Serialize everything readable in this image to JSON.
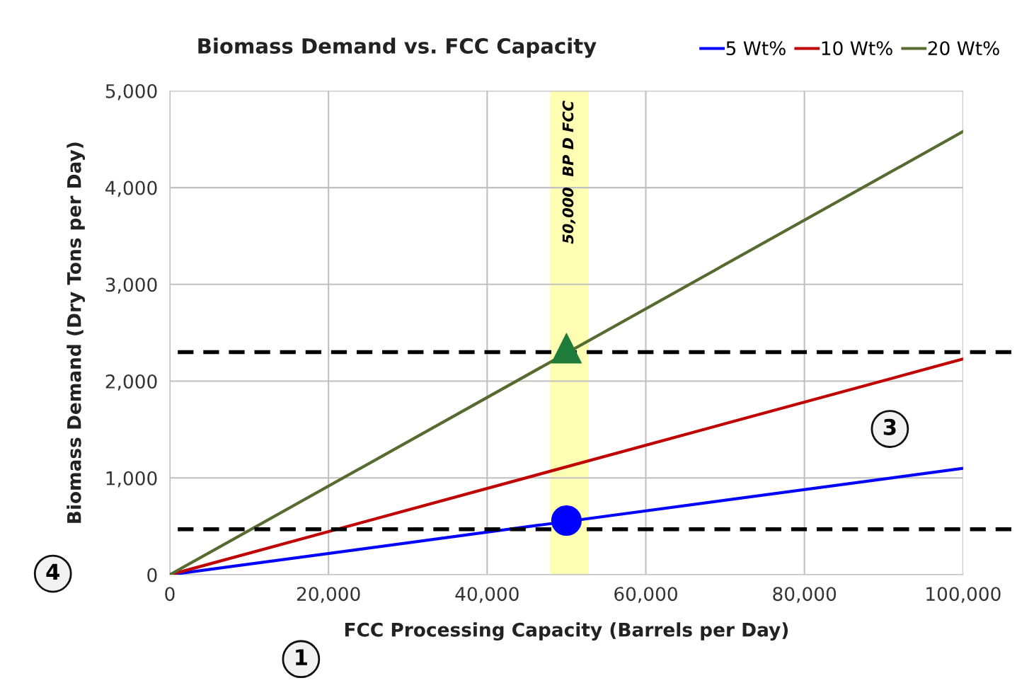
{
  "chart_data": {
    "type": "line",
    "title": "Biomass Demand vs. FCC Capacity",
    "xlabel": "FCC Processing Capacity (Barrels per Day)",
    "ylabel": "Biomass Demand (Dry Tons per Day)",
    "x": [
      0,
      100000
    ],
    "series": [
      {
        "name": "5 Wt%",
        "color": "#0000ff",
        "values": [
          0,
          1100
        ]
      },
      {
        "name": "10 Wt%",
        "color": "#c00000",
        "values": [
          0,
          2230
        ]
      },
      {
        "name": "20 Wt%",
        "color": "#556b2f",
        "values": [
          0,
          4580
        ]
      },
      {
        "type": "scatter",
        "color": "#0000ff",
        "marker": "circle",
        "x": [
          50000
        ],
        "values": [
          560
        ]
      },
      {
        "type": "scatter",
        "color": "#1e7b3a",
        "marker": "triangle",
        "x": [
          50000
        ],
        "values": [
          2340
        ]
      }
    ],
    "xlim": [
      0,
      100000
    ],
    "xticks": [
      {
        "value": 0,
        "label": "0"
      },
      {
        "value": 20000,
        "label": "20,000"
      },
      {
        "value": 40000,
        "label": "40,000"
      },
      {
        "value": 60000,
        "label": "60,000"
      },
      {
        "value": 80000,
        "label": "80,000"
      },
      {
        "value": 100000,
        "label": "100,000"
      }
    ],
    "ylim": [
      0,
      5000
    ],
    "yticks": [
      {
        "value": 0,
        "label": "0"
      },
      {
        "value": 1000,
        "label": "1,000"
      },
      {
        "value": 2000,
        "label": "2,000"
      },
      {
        "value": 3000,
        "label": "3,000"
      },
      {
        "value": 4000,
        "label": "4,000"
      },
      {
        "value": 5000,
        "label": "5,000"
      }
    ],
    "ref_lines": [
      {
        "axis": "y",
        "value": 2300,
        "color": "#000000",
        "line_style": "dashed"
      },
      {
        "axis": "y",
        "value": 470,
        "color": "#000000",
        "line_style": "dashed"
      }
    ],
    "bands": [
      {
        "axis": "x",
        "from": 47900,
        "to": 52800,
        "label": "50,000  BP D FCC",
        "color": "#ffffb3"
      }
    ],
    "annotations": [
      "1",
      "3",
      "4"
    ],
    "grid": true,
    "legend": "top right",
    "marker": "none",
    "line_style": "solid"
  }
}
